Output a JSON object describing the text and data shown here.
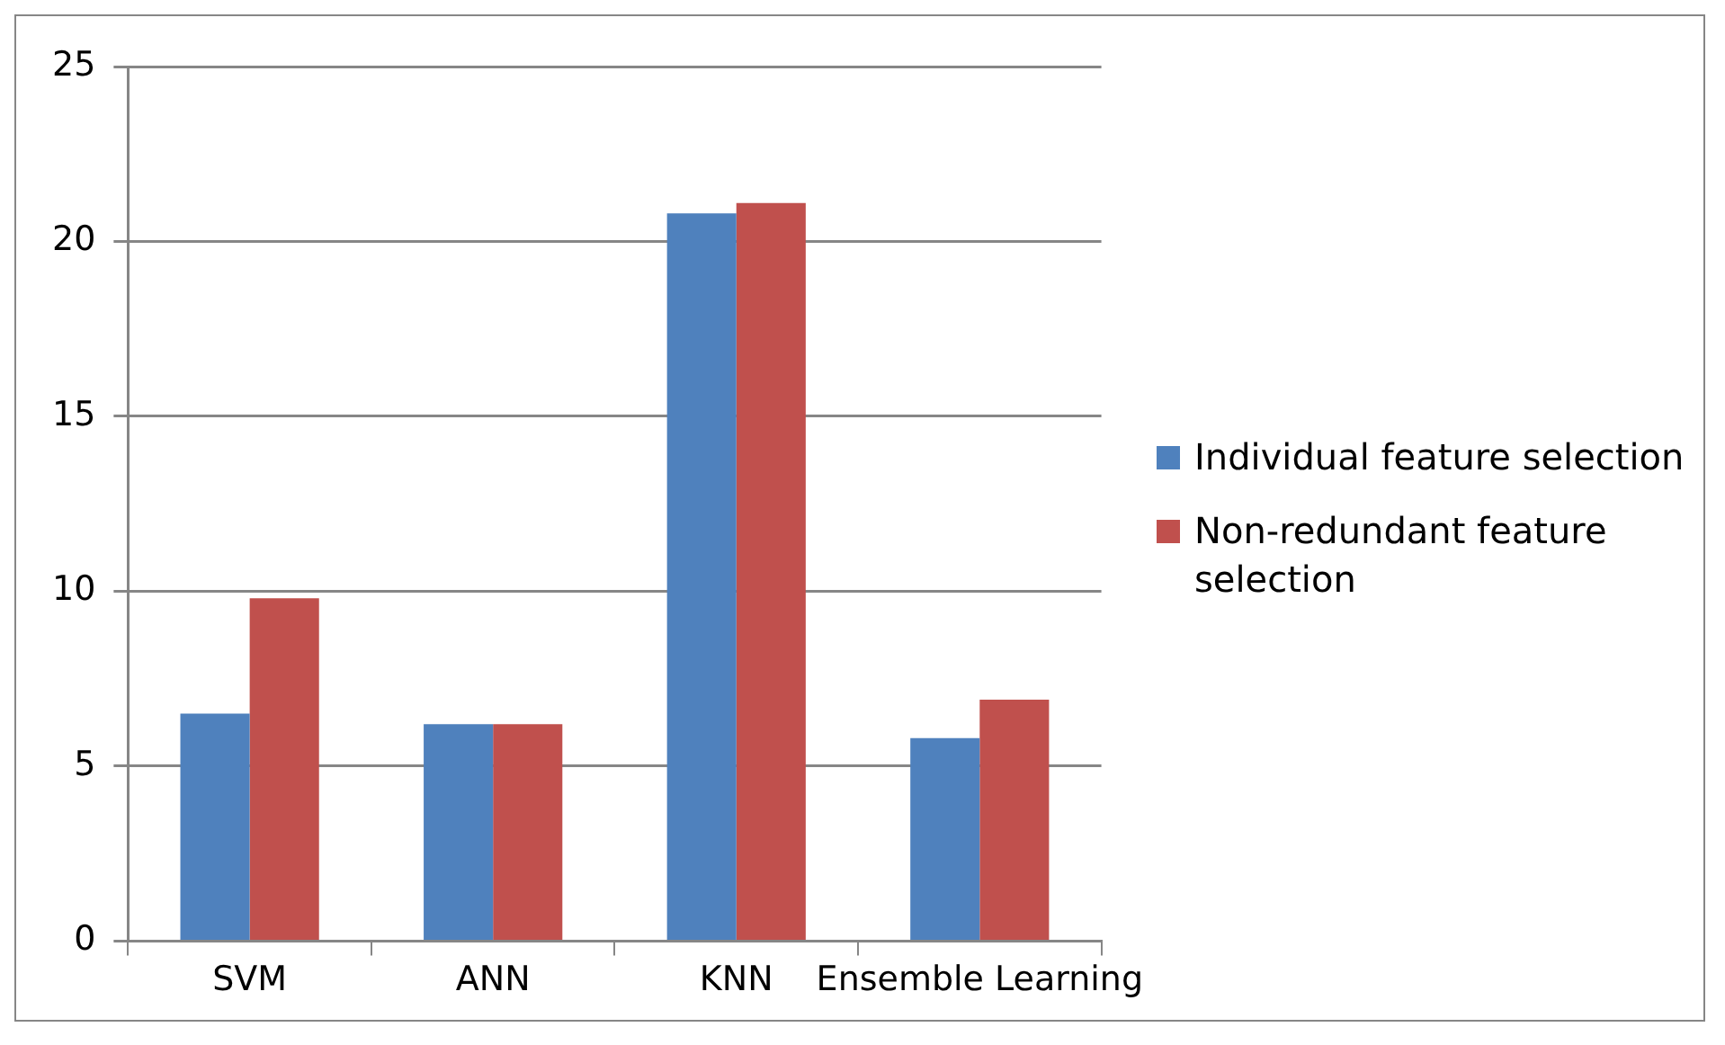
{
  "chart_data": {
    "type": "bar",
    "categories": [
      "SVM",
      "ANN",
      "KNN",
      "Ensemble Learning"
    ],
    "series": [
      {
        "name": "Individual feature selection",
        "color": "#4f81bd",
        "values": [
          6.5,
          6.2,
          20.8,
          5.8
        ]
      },
      {
        "name": "Non-redundant feature selection",
        "color": "#c0504d",
        "values": [
          9.8,
          6.2,
          21.1,
          6.9
        ]
      }
    ],
    "ylim": [
      0,
      25
    ],
    "yticks": [
      0,
      5,
      10,
      15,
      20,
      25
    ],
    "grid": "y",
    "legend": "right"
  }
}
